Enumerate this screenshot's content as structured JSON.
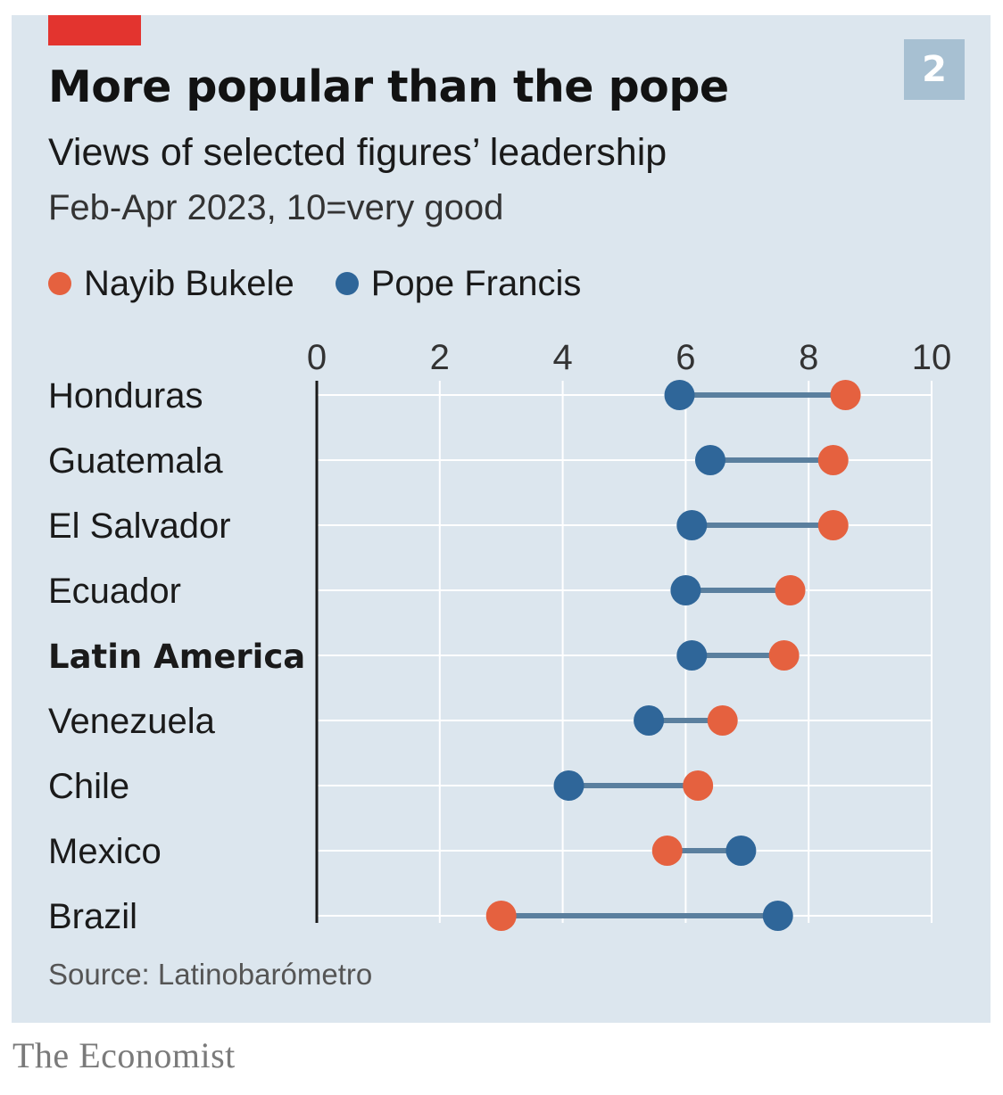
{
  "badge": "2",
  "brand": "The Economist",
  "colors": {
    "background": "#dce6ee",
    "accent_red": "#e3342f",
    "bukele": "#e5613f",
    "francis": "#2f6699",
    "connector": "#5a7f9e",
    "grid": "#ffffff",
    "axis": "#1a1a1a"
  },
  "chart_data": {
    "type": "dot-plot",
    "title": "More popular than the pope",
    "subtitle": "Views of selected figures’ leadership",
    "note": "Feb-Apr 2023, 10=very good",
    "source": "Source: Latinobarómetro",
    "xlim": [
      0,
      10
    ],
    "x_ticks": [
      "0",
      "2",
      "4",
      "6",
      "8",
      "10"
    ],
    "grid": true,
    "legend_position": "top-left",
    "categories": [
      "Honduras",
      "Guatemala",
      "El Salvador",
      "Ecuador",
      "Latin America",
      "Venezuela",
      "Chile",
      "Mexico",
      "Brazil"
    ],
    "bold_categories": [
      "Latin America"
    ],
    "series": [
      {
        "name": "Nayib Bukele",
        "color": "#e5613f",
        "values": [
          8.6,
          8.4,
          8.4,
          7.7,
          7.6,
          6.6,
          6.2,
          5.7,
          3.0
        ]
      },
      {
        "name": "Pope Francis",
        "color": "#2f6699",
        "values": [
          5.9,
          6.4,
          6.1,
          6.0,
          6.1,
          5.4,
          4.1,
          6.9,
          7.5
        ]
      }
    ]
  }
}
